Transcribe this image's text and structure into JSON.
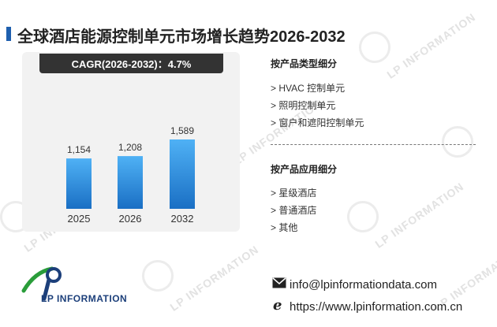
{
  "title": "全球酒店能源控制单元市场增长趋势2026-2032",
  "cagr_label": "CAGR(2026-2032)：4.7%",
  "chart_data": {
    "type": "bar",
    "categories": [
      "2025",
      "2026",
      "2032"
    ],
    "values": [
      1154,
      1208,
      1589
    ],
    "value_labels": [
      "1,154",
      "1,208",
      "1,589"
    ],
    "bar_color": "#2e8ee0",
    "ylim": [
      0,
      1800
    ]
  },
  "segments": {
    "type_heading": "按产品类型细分",
    "type_items": [
      "> HVAC 控制单元",
      "> 照明控制单元",
      "> 窗户和遮阳控制单元"
    ],
    "app_heading": "按产品应用细分",
    "app_items": [
      "> 星级酒店",
      "> 普通酒店",
      "> 其他"
    ]
  },
  "brand": {
    "logo_text": "LP INFORMATION",
    "watermark": "LP INFORMATION"
  },
  "contact": {
    "email": "info@lpinformationdata.com",
    "website": "https://www.lpinformation.com.cn",
    "email_icon": "envelope-icon",
    "web_icon": "browser-e-icon"
  }
}
